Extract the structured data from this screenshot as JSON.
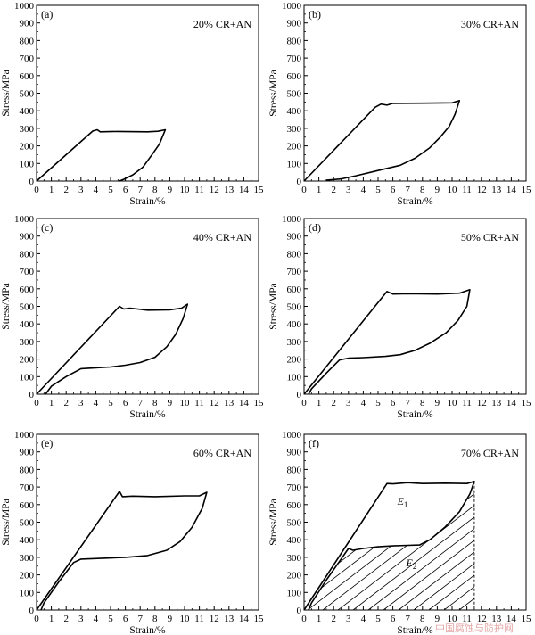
{
  "watermark": "中国腐蚀与防护网",
  "chart_data": [
    {
      "type": "line",
      "panel_label": "(a)",
      "condition": "20% CR+AN",
      "xlabel": "Strain/%",
      "ylabel": "Stress/MPa",
      "xlim": [
        0,
        15
      ],
      "ylim": [
        0,
        1000
      ],
      "x_ticks": [
        "0",
        "1",
        "2",
        "3",
        "4",
        "5",
        "6",
        "7",
        "8",
        "9",
        "10",
        "11",
        "12",
        "13",
        "14",
        "15"
      ],
      "y_ticks": [
        "0",
        "100",
        "200",
        "300",
        "400",
        "500",
        "600",
        "700",
        "800",
        "900",
        "1000"
      ],
      "series": [
        {
          "points": [
            [
              0,
              0
            ],
            [
              3.8,
              285
            ],
            [
              4.1,
              292
            ],
            [
              4.3,
              280
            ],
            [
              5.5,
              282
            ],
            [
              7.5,
              280
            ],
            [
              8.2,
              283
            ],
            [
              8.7,
              292
            ],
            [
              8.3,
              210
            ],
            [
              7.8,
              150
            ],
            [
              7.2,
              80
            ],
            [
              6.5,
              35
            ],
            [
              5.9,
              10
            ],
            [
              5.6,
              0
            ]
          ]
        }
      ]
    },
    {
      "type": "line",
      "panel_label": "(b)",
      "condition": "30% CR+AN",
      "xlabel": "Strain/%",
      "ylabel": "Stress/MPa",
      "xlim": [
        0,
        15
      ],
      "ylim": [
        0,
        1000
      ],
      "x_ticks": [
        "0",
        "1",
        "2",
        "3",
        "4",
        "5",
        "6",
        "7",
        "8",
        "9",
        "10",
        "11",
        "12",
        "13",
        "14",
        "15"
      ],
      "y_ticks": [
        "0",
        "100",
        "200",
        "300",
        "400",
        "500",
        "600",
        "700",
        "800",
        "900",
        "1000"
      ],
      "series": [
        {
          "points": [
            [
              0,
              0
            ],
            [
              4.8,
              420
            ],
            [
              5.2,
              438
            ],
            [
              5.6,
              432
            ],
            [
              6.0,
              442
            ],
            [
              8.0,
              443
            ],
            [
              10.0,
              445
            ],
            [
              10.5,
              458
            ],
            [
              10.2,
              380
            ],
            [
              9.8,
              310
            ],
            [
              9.2,
              250
            ],
            [
              8.5,
              190
            ],
            [
              7.5,
              130
            ],
            [
              6.5,
              90
            ],
            [
              5.0,
              60
            ],
            [
              3.5,
              30
            ],
            [
              2.5,
              12
            ],
            [
              1.5,
              5
            ]
          ]
        }
      ]
    },
    {
      "type": "line",
      "panel_label": "(c)",
      "condition": "40% CR+AN",
      "xlabel": "Strain/%",
      "ylabel": "Stress/MPa",
      "xlim": [
        0,
        15
      ],
      "ylim": [
        0,
        1000
      ],
      "x_ticks": [
        "0",
        "1",
        "2",
        "3",
        "4",
        "5",
        "6",
        "7",
        "8",
        "9",
        "10",
        "11",
        "12",
        "13",
        "14",
        "15"
      ],
      "y_ticks": [
        "0",
        "100",
        "200",
        "300",
        "400",
        "500",
        "600",
        "700",
        "800",
        "900",
        "1000"
      ],
      "series": [
        {
          "points": [
            [
              0,
              0
            ],
            [
              5.6,
              500
            ],
            [
              5.9,
              485
            ],
            [
              6.3,
              490
            ],
            [
              7.5,
              478
            ],
            [
              9.0,
              480
            ],
            [
              9.8,
              490
            ],
            [
              10.2,
              512
            ],
            [
              9.9,
              430
            ],
            [
              9.4,
              340
            ],
            [
              8.8,
              270
            ],
            [
              8.0,
              210
            ],
            [
              7.0,
              180
            ],
            [
              6.0,
              165
            ],
            [
              5.0,
              155
            ],
            [
              4.0,
              150
            ],
            [
              3.0,
              145
            ],
            [
              2.0,
              100
            ],
            [
              1.0,
              45
            ],
            [
              0.6,
              0
            ]
          ]
        }
      ]
    },
    {
      "type": "line",
      "panel_label": "(d)",
      "condition": "50% CR+AN",
      "xlabel": "Strain/%",
      "ylabel": "Stress/MPa",
      "xlim": [
        0,
        15
      ],
      "ylim": [
        0,
        1000
      ],
      "x_ticks": [
        "0",
        "1",
        "2",
        "3",
        "4",
        "5",
        "6",
        "7",
        "8",
        "9",
        "10",
        "11",
        "12",
        "13",
        "14",
        "15"
      ],
      "y_ticks": [
        "0",
        "100",
        "200",
        "300",
        "400",
        "500",
        "600",
        "700",
        "800",
        "900",
        "1000"
      ],
      "series": [
        {
          "points": [
            [
              0,
              0
            ],
            [
              5.6,
              585
            ],
            [
              6.0,
              570
            ],
            [
              7.0,
              572
            ],
            [
              9.0,
              570
            ],
            [
              10.5,
              575
            ],
            [
              11.2,
              595
            ],
            [
              11.0,
              500
            ],
            [
              10.4,
              420
            ],
            [
              9.6,
              350
            ],
            [
              8.5,
              290
            ],
            [
              7.5,
              250
            ],
            [
              6.5,
              225
            ],
            [
              5.5,
              215
            ],
            [
              4.0,
              208
            ],
            [
              3.0,
              205
            ],
            [
              2.4,
              195
            ],
            [
              1.5,
              120
            ],
            [
              0.5,
              30
            ],
            [
              0.3,
              0
            ]
          ]
        }
      ]
    },
    {
      "type": "line",
      "panel_label": "(e)",
      "condition": "60% CR+AN",
      "xlabel": "Strain/%",
      "ylabel": "Stress/MPa",
      "xlim": [
        0,
        15
      ],
      "ylim": [
        0,
        1000
      ],
      "x_ticks": [
        "0",
        "1",
        "2",
        "3",
        "4",
        "5",
        "6",
        "7",
        "8",
        "9",
        "10",
        "11",
        "12",
        "13",
        "14",
        "15"
      ],
      "y_ticks": [
        "0",
        "100",
        "200",
        "300",
        "400",
        "500",
        "600",
        "700",
        "800",
        "900",
        "1000"
      ],
      "series": [
        {
          "points": [
            [
              0,
              0
            ],
            [
              5.6,
              675
            ],
            [
              5.8,
              645
            ],
            [
              6.5,
              648
            ],
            [
              8.0,
              645
            ],
            [
              10.0,
              650
            ],
            [
              11.0,
              650
            ],
            [
              11.5,
              670
            ],
            [
              11.2,
              580
            ],
            [
              10.5,
              470
            ],
            [
              9.7,
              390
            ],
            [
              8.8,
              340
            ],
            [
              7.5,
              310
            ],
            [
              6.0,
              300
            ],
            [
              4.5,
              295
            ],
            [
              3.0,
              290
            ],
            [
              2.5,
              270
            ],
            [
              1.5,
              160
            ],
            [
              0.5,
              40
            ],
            [
              0.3,
              0
            ]
          ]
        }
      ]
    },
    {
      "type": "line",
      "panel_label": "(f)",
      "condition": "70% CR+AN",
      "xlabel": "Strain/%",
      "ylabel": "Stress/MPa",
      "xlim": [
        0,
        15
      ],
      "ylim": [
        0,
        1000
      ],
      "x_ticks": [
        "0",
        "1",
        "2",
        "3",
        "4",
        "5",
        "6",
        "7",
        "8",
        "9",
        "10",
        "11",
        "12",
        "13",
        "14",
        "15"
      ],
      "y_ticks": [
        "0",
        "100",
        "200",
        "300",
        "400",
        "500",
        "600",
        "700",
        "800",
        "900",
        "1000"
      ],
      "annotations": [
        {
          "text": "E",
          "subscript": "1",
          "x": 6.3,
          "y": 600
        },
        {
          "text": "E",
          "subscript": "2",
          "x": 6.9,
          "y": 250
        }
      ],
      "shaded_region": "hatched area under the unloading curve (E2)",
      "dashed_line_x": 11.5,
      "series": [
        {
          "points": [
            [
              0,
              0
            ],
            [
              5.6,
              720
            ],
            [
              6.0,
              718
            ],
            [
              7.0,
              725
            ],
            [
              8.0,
              720
            ],
            [
              9.5,
              722
            ],
            [
              11.0,
              720
            ],
            [
              11.5,
              732
            ],
            [
              11.2,
              660
            ],
            [
              10.5,
              560
            ],
            [
              9.5,
              470
            ],
            [
              8.5,
              400
            ],
            [
              7.8,
              370
            ],
            [
              7.0,
              368
            ],
            [
              6.0,
              365
            ],
            [
              5.0,
              360
            ],
            [
              4.0,
              350
            ],
            [
              3.3,
              340
            ],
            [
              3.0,
              350
            ],
            [
              2.5,
              290
            ],
            [
              1.5,
              170
            ],
            [
              0.5,
              40
            ],
            [
              0.3,
              0
            ]
          ]
        }
      ]
    }
  ]
}
